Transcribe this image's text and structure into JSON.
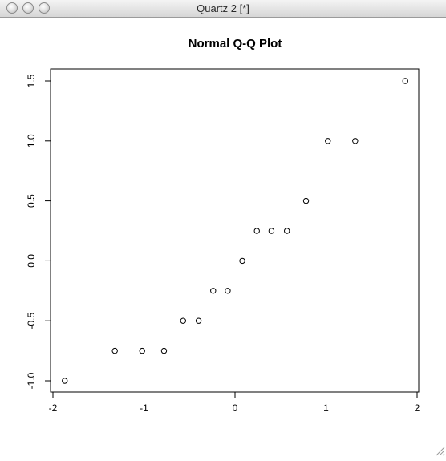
{
  "window": {
    "title": "Quartz 2 [*]"
  },
  "chart_data": {
    "type": "scatter",
    "title": "Normal Q-Q Plot",
    "xlabel": "",
    "ylabel": "",
    "xlim": [
      -2.05,
      2.05
    ],
    "ylim": [
      -1.07,
      1.57
    ],
    "x_ticks": [
      -2,
      -1,
      0,
      1,
      2
    ],
    "x_tick_labels": [
      "-2",
      "-1",
      "0",
      "1",
      "2"
    ],
    "y_ticks": [
      -1.0,
      -0.5,
      0.0,
      0.5,
      1.0,
      1.5
    ],
    "y_tick_labels": [
      "-1.0",
      "-0.5",
      "0.0",
      "0.5",
      "1.0",
      "1.5"
    ],
    "grid": false,
    "marker": "open-circle",
    "points": [
      {
        "x": -1.87,
        "y": -1.0
      },
      {
        "x": -1.32,
        "y": -0.75
      },
      {
        "x": -1.02,
        "y": -0.75
      },
      {
        "x": -0.78,
        "y": -0.75
      },
      {
        "x": -0.57,
        "y": -0.5
      },
      {
        "x": -0.4,
        "y": -0.5
      },
      {
        "x": -0.24,
        "y": -0.25
      },
      {
        "x": -0.08,
        "y": -0.25
      },
      {
        "x": 0.08,
        "y": 0.0
      },
      {
        "x": 0.24,
        "y": 0.25
      },
      {
        "x": 0.4,
        "y": 0.25
      },
      {
        "x": 0.57,
        "y": 0.25
      },
      {
        "x": 0.78,
        "y": 0.5
      },
      {
        "x": 1.02,
        "y": 1.0
      },
      {
        "x": 1.32,
        "y": 1.0
      },
      {
        "x": 1.87,
        "y": 1.5
      }
    ]
  }
}
